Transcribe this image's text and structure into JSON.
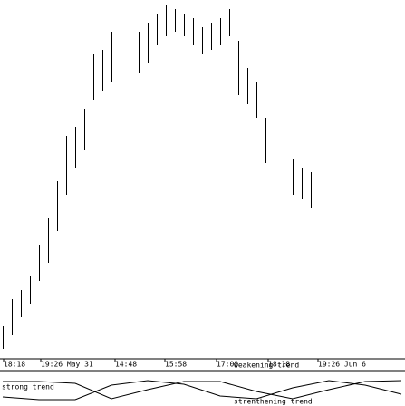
{
  "chart_data": [
    {
      "type": "range",
      "x": [
        0,
        1,
        2,
        3,
        4,
        5,
        6,
        7,
        8,
        9,
        10,
        11,
        12,
        13,
        14,
        15,
        16,
        17,
        18,
        19,
        20,
        21,
        22,
        23,
        24,
        25,
        26,
        27,
        28,
        29,
        30,
        31,
        32,
        33,
        34
      ],
      "series": [
        {
          "name": "high",
          "color": "#000000",
          "values": [
            35,
            65,
            75,
            90,
            125,
            155,
            195,
            245,
            255,
            275,
            335,
            340,
            360,
            365,
            350,
            360,
            370,
            380,
            390,
            385,
            380,
            375,
            365,
            370,
            375,
            385,
            350,
            320,
            305,
            265,
            245,
            235,
            220,
            210,
            205
          ]
        },
        {
          "name": "low",
          "color": "#000000",
          "values": [
            10,
            25,
            45,
            60,
            85,
            105,
            140,
            180,
            210,
            230,
            285,
            295,
            305,
            315,
            300,
            315,
            325,
            345,
            355,
            360,
            355,
            345,
            335,
            340,
            345,
            355,
            290,
            280,
            265,
            215,
            200,
            195,
            180,
            175,
            165
          ]
        }
      ],
      "xlim": [
        -0.3,
        44.4
      ],
      "ylim": [
        0,
        390
      ],
      "xticks": [
        {
          "value": 0.1,
          "label": "18:18"
        },
        {
          "value": 4.2,
          "label": "19:26 May 31"
        },
        {
          "value": 12.4,
          "label": "14:48"
        },
        {
          "value": 17.9,
          "label": "15:58"
        },
        {
          "value": 23.6,
          "label": "17:08"
        },
        {
          "value": 29.3,
          "label": "18:18"
        },
        {
          "value": 34.8,
          "label": "19:26 Jun 6"
        }
      ]
    },
    {
      "type": "line",
      "x": [
        0,
        4,
        8,
        12,
        16,
        20,
        24,
        28,
        32,
        36,
        40,
        44
      ],
      "series": [
        {
          "color": "#000000",
          "values": [
            27,
            27,
            25,
            8,
            18,
            27,
            27,
            16,
            8,
            18,
            27,
            28
          ]
        },
        {
          "color": "#000000",
          "values": [
            10,
            7,
            7,
            23,
            28,
            24,
            11,
            8,
            20,
            28,
            23,
            13
          ]
        }
      ],
      "xlim": [
        -0.3,
        44.4
      ],
      "ylim": [
        0,
        38
      ],
      "annotations": [
        "strong trend",
        "weakening trend",
        "strenthening trend"
      ]
    }
  ]
}
